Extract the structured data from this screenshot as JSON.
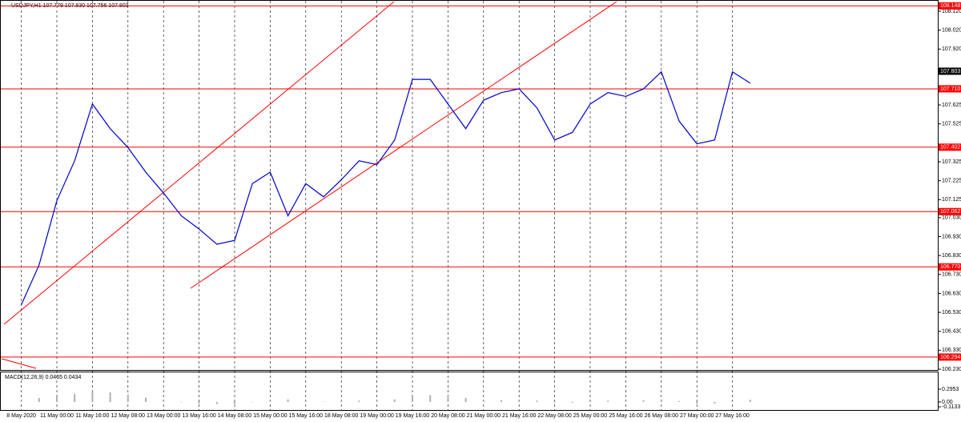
{
  "chart_data": [
    {
      "type": "line",
      "title": "USDJPY,H1 107.779 107.830 107.756 107.803",
      "categories": [
        "8 May 2020",
        null,
        "11 May 00:00",
        null,
        "11 May 16:00",
        null,
        "12 May 08:00",
        null,
        "13 May 00:00",
        null,
        "13 May 16:00",
        null,
        "14 May 08:00",
        null,
        "15 May 00:00",
        null,
        "15 May 16:00",
        null,
        "18 May 08:00",
        null,
        "19 May 00:00",
        null,
        "19 May 16:00",
        null,
        "20 May 08:00",
        null,
        "21 May 00:00",
        null,
        "21 May 16:00",
        null,
        "22 May 08:00",
        null,
        "25 May 00:00",
        null,
        "25 May 16:00",
        null,
        "26 May 08:00",
        null,
        "27 May 00:00",
        null,
        "27 May 16:00",
        null
      ],
      "values": [
        106.57,
        106.78,
        107.12,
        107.33,
        107.63,
        107.5,
        107.4,
        107.27,
        107.16,
        107.04,
        106.97,
        106.89,
        106.91,
        107.21,
        107.27,
        107.04,
        107.21,
        107.14,
        107.23,
        107.33,
        107.31,
        107.44,
        107.76,
        107.76,
        107.63,
        107.5,
        107.65,
        107.69,
        107.71,
        107.61,
        107.44,
        107.48,
        107.63,
        107.69,
        107.67,
        107.71,
        107.8,
        107.54,
        107.42,
        107.44,
        107.8,
        107.74
      ],
      "color": "#0000cc",
      "ylim": [
        106.226,
        108.179
      ],
      "yticks": [
        {
          "value": 108.12,
          "label": "108.120"
        },
        {
          "value": 108.02,
          "label": "108.020"
        },
        {
          "value": 107.92,
          "label": "107.920"
        },
        {
          "value": 107.625,
          "label": "107.625"
        },
        {
          "value": 107.525,
          "label": "107.525"
        },
        {
          "value": 107.325,
          "label": "107.325"
        },
        {
          "value": 107.225,
          "label": "107.225"
        },
        {
          "value": 107.125,
          "label": "107.125"
        },
        {
          "value": 107.03,
          "label": "107.030"
        },
        {
          "value": 106.93,
          "label": "106.930"
        },
        {
          "value": 106.83,
          "label": "106.830"
        },
        {
          "value": 106.73,
          "label": "106.730"
        },
        {
          "value": 106.63,
          "label": "106.630"
        },
        {
          "value": 106.53,
          "label": "106.530"
        },
        {
          "value": 106.43,
          "label": "106.430"
        },
        {
          "value": 106.33,
          "label": "106.330"
        },
        {
          "value": 106.23,
          "label": "106.230"
        }
      ],
      "levels": [
        {
          "value": 108.148,
          "label": "108.148"
        },
        {
          "value": 107.71,
          "label": "107.710"
        },
        {
          "value": 107.402,
          "label": "107.402"
        },
        {
          "value": 107.062,
          "label": "107.062"
        },
        {
          "value": 106.77,
          "label": "106.770"
        },
        {
          "value": 106.294,
          "label": "106.294"
        }
      ],
      "level_color": "#ff0000",
      "last_price": {
        "value": 107.803,
        "label": "107.803"
      }
    },
    {
      "type": "bar",
      "title": "MACD(12,26,9) 0.0465 0.0434",
      "values": [
        0.05,
        0.09,
        0.14,
        0.19,
        0.24,
        0.22,
        0.17,
        0.1,
        0.04,
        -0.01,
        -0.04,
        -0.05,
        -0.05,
        -0.01,
        0.05,
        0.06,
        0.03,
        0.01,
        0.02,
        0.03,
        0.04,
        0.06,
        0.12,
        0.16,
        0.14,
        0.09,
        0.05,
        0.04,
        0.04,
        0.03,
        -0.01,
        -0.02,
        0.01,
        0.03,
        0.03,
        0.04,
        0.06,
        0.02,
        -0.04,
        -0.04,
        0.01,
        0.05
      ],
      "color": "#b0b0b0",
      "ylim": [
        -0.206,
        0.686
      ],
      "yticks": [
        0.2953,
        {
          "value": 0,
          "label": "0.00"
        },
        -0.1133
      ]
    }
  ]
}
